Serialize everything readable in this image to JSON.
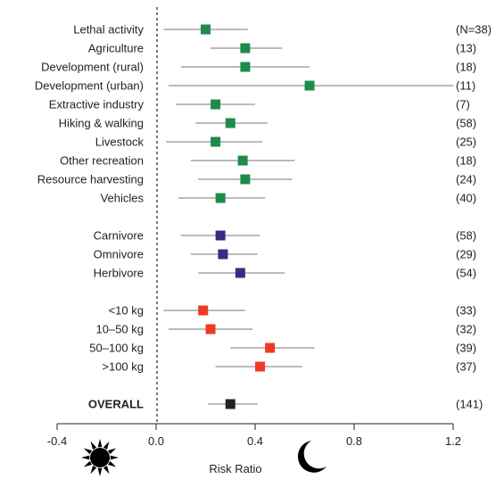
{
  "chart_data": {
    "type": "scatter",
    "subtype": "forest-plot",
    "title": "",
    "xlabel": "Risk Ratio",
    "ylabel": "",
    "xlim": [
      -0.4,
      1.2
    ],
    "xticks": [
      "-0.4",
      "0.0",
      "0.4",
      "0.8",
      "1.2"
    ],
    "xtick_values": [
      -0.4,
      0.0,
      0.4,
      0.8,
      1.2
    ],
    "reference_line": 0.0,
    "grid": false,
    "icons": {
      "left": "sun-icon",
      "right": "moon-icon"
    },
    "colors": {
      "activity": "#1e8b4a",
      "diet": "#3b2a80",
      "mass": "#ee3a22",
      "overall": "#222222",
      "ci_line": "#777777"
    },
    "groups": [
      {
        "name": "activity",
        "rows": [
          {
            "label": "Lethal activity",
            "n": "(N=38)",
            "estimate": 0.2,
            "ci_low": 0.03,
            "ci_high": 0.37
          },
          {
            "label": "Agriculture",
            "n": "(13)",
            "estimate": 0.36,
            "ci_low": 0.22,
            "ci_high": 0.51
          },
          {
            "label": "Development (rural)",
            "n": "(18)",
            "estimate": 0.36,
            "ci_low": 0.1,
            "ci_high": 0.62
          },
          {
            "label": "Development (urban)",
            "n": "(11)",
            "estimate": 0.62,
            "ci_low": 0.05,
            "ci_high": 1.2
          },
          {
            "label": "Extractive industry",
            "n": "(7)",
            "estimate": 0.24,
            "ci_low": 0.08,
            "ci_high": 0.4
          },
          {
            "label": "Hiking & walking",
            "n": "(58)",
            "estimate": 0.3,
            "ci_low": 0.16,
            "ci_high": 0.45
          },
          {
            "label": "Livestock",
            "n": "(25)",
            "estimate": 0.24,
            "ci_low": 0.04,
            "ci_high": 0.43
          },
          {
            "label": "Other recreation",
            "n": "(18)",
            "estimate": 0.35,
            "ci_low": 0.14,
            "ci_high": 0.56
          },
          {
            "label": "Resource harvesting",
            "n": "(24)",
            "estimate": 0.36,
            "ci_low": 0.17,
            "ci_high": 0.55
          },
          {
            "label": "Vehicles",
            "n": "(40)",
            "estimate": 0.26,
            "ci_low": 0.09,
            "ci_high": 0.44
          }
        ]
      },
      {
        "name": "diet",
        "rows": [
          {
            "label": "Carnivore",
            "n": "(58)",
            "estimate": 0.26,
            "ci_low": 0.1,
            "ci_high": 0.42
          },
          {
            "label": "Omnivore",
            "n": "(29)",
            "estimate": 0.27,
            "ci_low": 0.14,
            "ci_high": 0.41
          },
          {
            "label": "Herbivore",
            "n": "(54)",
            "estimate": 0.34,
            "ci_low": 0.17,
            "ci_high": 0.52
          }
        ]
      },
      {
        "name": "mass",
        "rows": [
          {
            "label": "<10 kg",
            "n": "(33)",
            "estimate": 0.19,
            "ci_low": 0.03,
            "ci_high": 0.36
          },
          {
            "label": "10–50 kg",
            "n": "(32)",
            "estimate": 0.22,
            "ci_low": 0.05,
            "ci_high": 0.39
          },
          {
            "label": "50–100 kg",
            "n": "(39)",
            "estimate": 0.46,
            "ci_low": 0.3,
            "ci_high": 0.64
          },
          {
            "label": ">100 kg",
            "n": "(37)",
            "estimate": 0.42,
            "ci_low": 0.24,
            "ci_high": 0.59
          }
        ]
      },
      {
        "name": "overall",
        "rows": [
          {
            "label": "OVERALL",
            "n": "(141)",
            "estimate": 0.3,
            "ci_low": 0.21,
            "ci_high": 0.41,
            "bold": true
          }
        ]
      }
    ]
  }
}
